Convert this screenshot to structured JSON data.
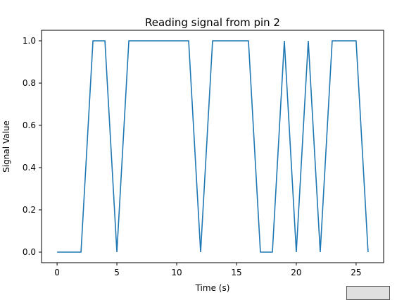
{
  "chart_data": {
    "type": "line",
    "title": "Reading signal from pin 2",
    "xlabel": "Time (s)",
    "ylabel": "Signal Value",
    "xlim": [
      -1.3,
      27.3
    ],
    "ylim": [
      -0.05,
      1.05
    ],
    "xticks": [
      0,
      5,
      10,
      15,
      20,
      25
    ],
    "xtick_labels": [
      "0",
      "5",
      "10",
      "15",
      "20",
      "25"
    ],
    "yticks": [
      0.0,
      0.2,
      0.4,
      0.6,
      0.8,
      1.0
    ],
    "ytick_labels": [
      "0.0",
      "0.2",
      "0.4",
      "0.6",
      "0.8",
      "1.0"
    ],
    "grid": false,
    "series": [
      {
        "name": "pin 2",
        "color": "#1f77b4",
        "x": [
          0,
          1,
          2,
          3,
          4,
          5,
          6,
          7,
          8,
          9,
          10,
          11,
          12,
          13,
          14,
          15,
          16,
          17,
          18,
          19,
          20,
          21,
          22,
          23,
          24,
          25,
          26
        ],
        "y": [
          0,
          0,
          0,
          1,
          1,
          0,
          1,
          1,
          1,
          1,
          1,
          1,
          0,
          1,
          1,
          1,
          1,
          0,
          0,
          1,
          0,
          1,
          0,
          1,
          1,
          1,
          0
        ]
      }
    ]
  }
}
